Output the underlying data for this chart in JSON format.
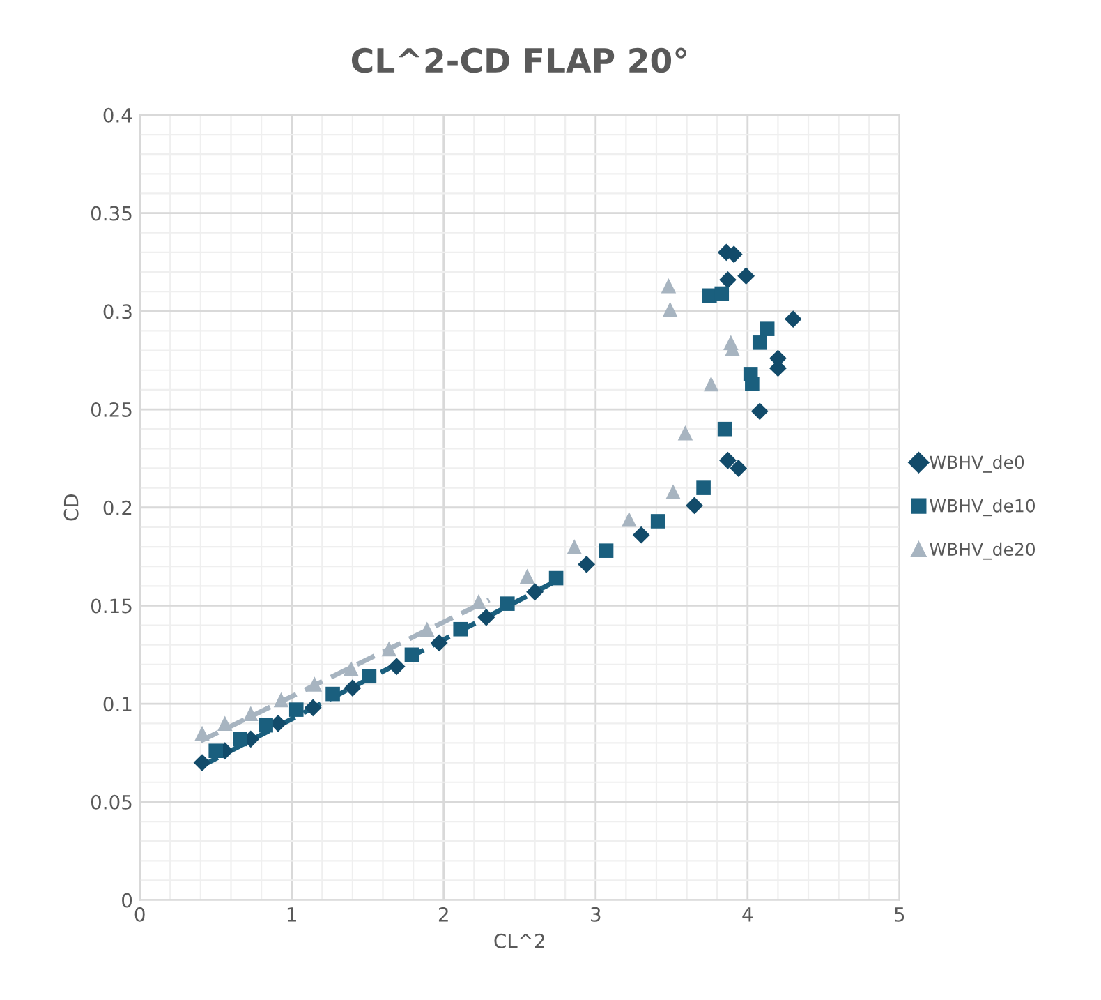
{
  "chart_data": {
    "type": "scatter",
    "title": "CL^2-CD FLAP 20°",
    "xlabel": "CL^2",
    "ylabel": "CD",
    "xlim": [
      0,
      5
    ],
    "xticks": [
      0,
      1,
      2,
      3,
      4,
      5
    ],
    "ylim": [
      0,
      0.4
    ],
    "yticks": [
      0,
      0.05,
      0.1,
      0.15,
      0.2,
      0.25,
      0.3,
      0.35,
      0.4
    ],
    "grid": true,
    "legend": "right",
    "series": [
      {
        "name": "WBHV_de0",
        "color": "#124b6a",
        "marker": "diamond",
        "x": [
          0.41,
          0.56,
          0.73,
          0.91,
          1.14,
          1.4,
          1.69,
          1.97,
          2.28,
          2.6,
          2.94,
          3.3,
          3.65,
          3.87,
          3.94,
          4.08,
          4.2,
          4.2,
          4.3,
          3.99,
          3.87,
          3.86,
          3.91
        ],
        "values": [
          0.07,
          0.076,
          0.082,
          0.09,
          0.098,
          0.108,
          0.119,
          0.131,
          0.144,
          0.157,
          0.171,
          0.186,
          0.201,
          0.224,
          0.22,
          0.249,
          0.271,
          0.276,
          0.296,
          0.318,
          0.316,
          0.33,
          0.329
        ]
      },
      {
        "name": "WBHV_de10",
        "color": "#1a5f7e",
        "marker": "square",
        "x": [
          0.5,
          0.66,
          0.83,
          1.03,
          1.27,
          1.51,
          1.79,
          2.11,
          2.42,
          2.74,
          3.07,
          3.41,
          3.71,
          3.85,
          4.02,
          4.03,
          4.08,
          4.13,
          3.75,
          3.83
        ],
        "values": [
          0.076,
          0.082,
          0.089,
          0.097,
          0.105,
          0.114,
          0.125,
          0.138,
          0.151,
          0.164,
          0.178,
          0.193,
          0.21,
          0.24,
          0.268,
          0.263,
          0.284,
          0.291,
          0.308,
          0.309
        ]
      },
      {
        "name": "WBHV_de20",
        "color": "#a7b4c0",
        "marker": "triangle",
        "x": [
          0.41,
          0.56,
          0.73,
          0.93,
          1.15,
          1.39,
          1.64,
          1.89,
          2.23,
          2.55,
          2.86,
          3.22,
          3.51,
          3.59,
          3.76,
          3.89,
          3.9,
          3.48,
          3.49
        ],
        "values": [
          0.085,
          0.09,
          0.095,
          0.102,
          0.11,
          0.118,
          0.128,
          0.138,
          0.152,
          0.165,
          0.18,
          0.194,
          0.208,
          0.238,
          0.263,
          0.284,
          0.281,
          0.313,
          0.301
        ]
      },
      {
        "type": "line",
        "color": "#1a5f7e",
        "line_style": "dashed",
        "x": [
          0.4,
          2.75
        ],
        "values": [
          0.068,
          0.163
        ]
      },
      {
        "type": "line",
        "color": "#a7b4c0",
        "line_style": "dashed",
        "x": [
          0.4,
          2.3
        ],
        "values": [
          0.081,
          0.153
        ]
      }
    ]
  }
}
